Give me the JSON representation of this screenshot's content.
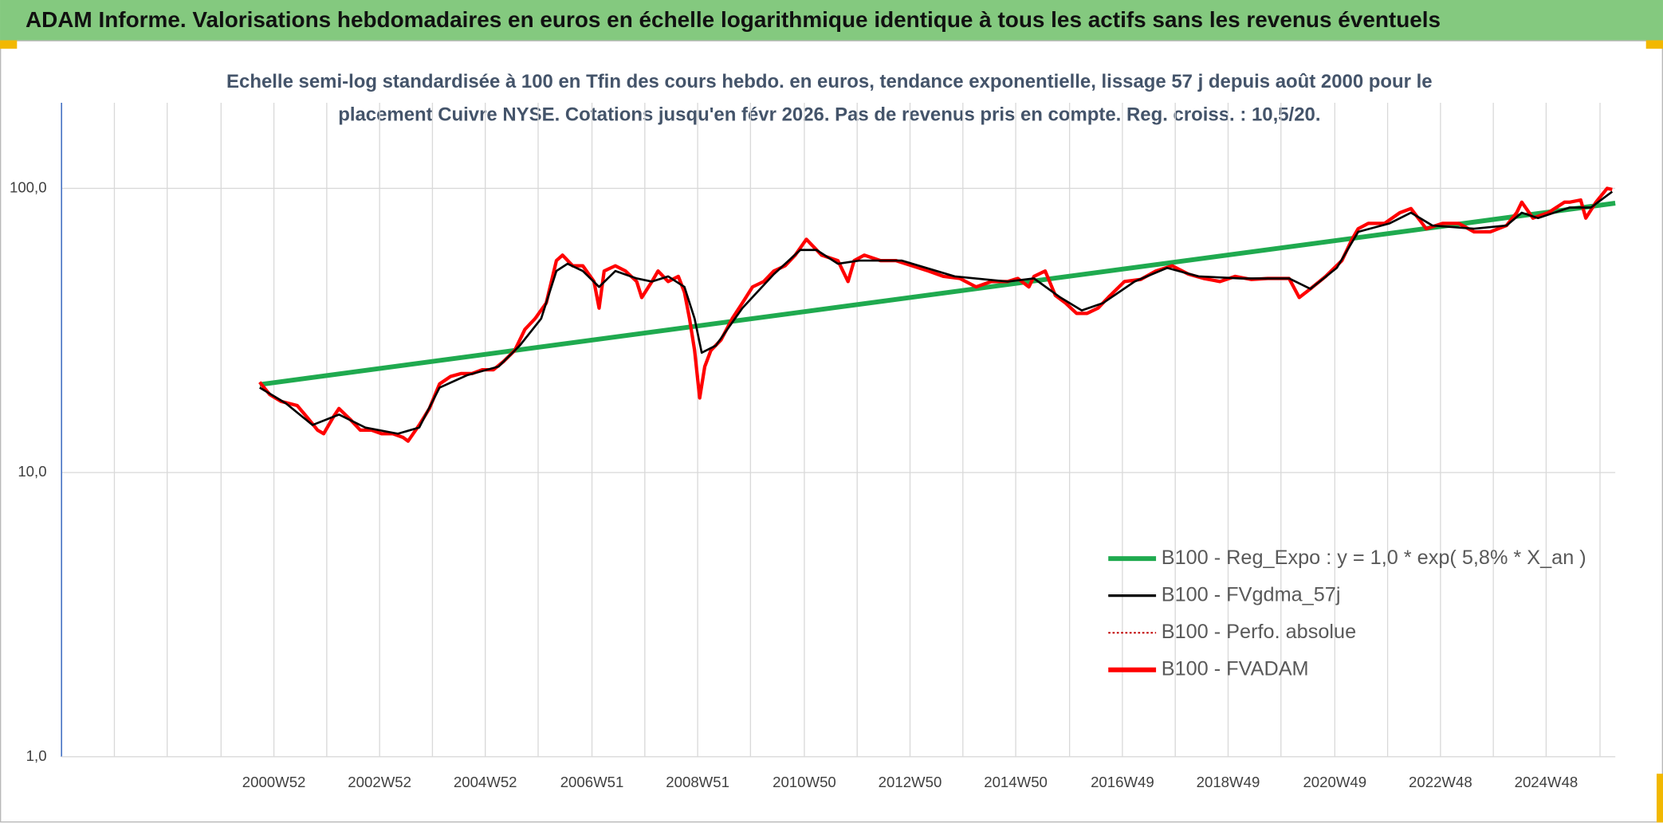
{
  "chart_data": {
    "type": "line",
    "title": "ADAM Informe. Valorisations hebdomadaires en euros en échelle logarithmique identique à tous les actifs sans les revenus éventuels",
    "subtitle": [
      "Echelle semi-log standardisée à 100 en Tfin des cours hebdo. en euros, tendance exponentielle, lissage 57 j depuis août 2000 pour le",
      "placement Cuivre NYSE. Cotations jusqu'en févr 2026. Pas de revenus pris en compte. Reg. croiss. : 10,5/20."
    ],
    "xlim": [
      -195,
      1334
    ],
    "xticks": [
      {
        "value": 14,
        "label": "2000W52"
      },
      {
        "value": 118,
        "label": "2002W52"
      },
      {
        "value": 222,
        "label": "2004W52"
      },
      {
        "value": 327,
        "label": "2006W51"
      },
      {
        "value": 431,
        "label": "2008W51"
      },
      {
        "value": 536,
        "label": "2010W50"
      },
      {
        "value": 640,
        "label": "2012W50"
      },
      {
        "value": 744,
        "label": "2014W50"
      },
      {
        "value": 849,
        "label": "2016W49"
      },
      {
        "value": 953,
        "label": "2018W49"
      },
      {
        "value": 1058,
        "label": "2020W49"
      },
      {
        "value": 1162,
        "label": "2022W48"
      },
      {
        "value": 1266,
        "label": "2024W48"
      }
    ],
    "xgrid": [
      -195,
      -143,
      -91,
      -38,
      14,
      66,
      118,
      170,
      222,
      274,
      327,
      379,
      431,
      483,
      536,
      588,
      640,
      692,
      744,
      797,
      849,
      901,
      953,
      1005,
      1058,
      1110,
      1162,
      1214,
      1266,
      1319
    ],
    "ylim": [
      1,
      200
    ],
    "ylog": true,
    "yticks": [
      {
        "value": 1,
        "label": "1,0"
      },
      {
        "value": 10,
        "label": "10,0"
      },
      {
        "value": 100,
        "label": "100,0"
      }
    ],
    "grid": true,
    "legend": "lower right",
    "series": [
      {
        "name": "B100 - Reg_Expo : y = 1,0 * exp( 5,8% *  X_an )",
        "color": "#1faa4f",
        "style": "solid",
        "x": [
          0,
          1334
        ],
        "values": [
          20.4,
          88.7
        ]
      },
      {
        "name": "B100 - FVgdma_57j",
        "color": "#000000",
        "style": "solid",
        "x": [
          0,
          26,
          52,
          78,
          104,
          136,
          157,
          177,
          204,
          235,
          256,
          277,
          292,
          303,
          318,
          334,
          350,
          371,
          386,
          402,
          418,
          428,
          435,
          449,
          475,
          506,
          532,
          548,
          569,
          590,
          632,
          684,
          736,
          762,
          788,
          809,
          830,
          861,
          893,
          924,
          966,
          1013,
          1034,
          1060,
          1081,
          1112,
          1133,
          1154,
          1195,
          1227,
          1242,
          1258,
          1289,
          1310,
          1331
        ],
        "values": [
          19.9,
          17.5,
          14.7,
          16.0,
          14.4,
          13.7,
          14.4,
          19.9,
          22.0,
          23.6,
          28.0,
          34.8,
          51.2,
          54.3,
          51.2,
          45.0,
          51.2,
          48.2,
          47.0,
          49.0,
          45.0,
          34.8,
          26.4,
          28.0,
          37.9,
          49.9,
          60.7,
          60.7,
          54.3,
          55.7,
          55.7,
          49.0,
          47.0,
          48.2,
          41.3,
          37.2,
          39.5,
          47.0,
          52.5,
          49.0,
          48.2,
          48.2,
          44.3,
          52.5,
          70.3,
          75.3,
          82.1,
          74.0,
          72.1,
          74.0,
          82.1,
          78.6,
          85.6,
          85.6,
          97.4
        ]
      },
      {
        "name": "B100 - Perfo. absolue",
        "color": "#c00000",
        "style": "dotted",
        "x": [
          0,
          10,
          21,
          37,
          47,
          57,
          63,
          73,
          78,
          89,
          99,
          110,
          120,
          131,
          141,
          146,
          157,
          167,
          177,
          188,
          198,
          209,
          219,
          230,
          240,
          251,
          261,
          271,
          282,
          292,
          298,
          308,
          318,
          329,
          334,
          339,
          350,
          360,
          371,
          376,
          386,
          392,
          402,
          412,
          418,
          423,
          428,
          433,
          438,
          444,
          454,
          465,
          475,
          485,
          496,
          506,
          517,
          527,
          538,
          543,
          553,
          569,
          579,
          585,
          595,
          611,
          626,
          642,
          658,
          673,
          689,
          705,
          720,
          736,
          746,
          757,
          762,
          773,
          783,
          793,
          804,
          814,
          825,
          835,
          851,
          867,
          882,
          898,
          914,
          929,
          945,
          960,
          976,
          992,
          1013,
          1023,
          1034,
          1049,
          1065,
          1075,
          1081,
          1091,
          1107,
          1122,
          1133,
          1148,
          1164,
          1180,
          1195,
          1211,
          1227,
          1237,
          1242,
          1253,
          1268,
          1284,
          1289,
          1300,
          1305,
          1315,
          1326,
          1331
        ],
        "values": [
          20.8,
          18.8,
          17.8,
          17.2,
          15.6,
          14.1,
          13.7,
          15.8,
          16.8,
          15.4,
          14.1,
          14.1,
          13.7,
          13.7,
          13.3,
          12.9,
          14.7,
          16.8,
          20.5,
          21.8,
          22.3,
          22.3,
          23.0,
          23.0,
          24.6,
          26.9,
          31.9,
          34.8,
          39.5,
          55.7,
          58.2,
          53.4,
          53.4,
          47.0,
          37.9,
          51.2,
          53.4,
          51.2,
          47.0,
          41.3,
          47.0,
          51.2,
          47.0,
          49.0,
          43.1,
          34.8,
          26.9,
          18.3,
          23.6,
          26.9,
          29.3,
          34.8,
          39.5,
          45.0,
          47.0,
          51.2,
          53.4,
          58.2,
          66.2,
          63.4,
          58.2,
          55.7,
          47.0,
          55.7,
          58.2,
          55.7,
          55.7,
          53.4,
          51.2,
          49.0,
          48.2,
          45.0,
          47.0,
          47.0,
          48.2,
          45.0,
          49.0,
          51.2,
          42.0,
          39.5,
          36.3,
          36.3,
          37.9,
          41.3,
          47.0,
          47.8,
          51.2,
          53.4,
          49.9,
          48.2,
          47.0,
          49.0,
          47.8,
          48.2,
          48.2,
          41.3,
          44.3,
          49.0,
          55.7,
          66.2,
          72.1,
          75.3,
          75.3,
          82.1,
          84.9,
          72.1,
          75.3,
          75.3,
          70.3,
          70.3,
          74.0,
          82.1,
          89.4,
          78.6,
          82.1,
          89.4,
          89.4,
          91.0,
          78.6,
          89.4,
          100,
          99.1
        ]
      },
      {
        "name": "B100 - FVADAM",
        "color": "#ff0000",
        "style": "solid",
        "x": [
          0,
          10,
          21,
          37,
          47,
          57,
          63,
          73,
          78,
          89,
          99,
          110,
          120,
          131,
          141,
          146,
          157,
          167,
          177,
          188,
          198,
          209,
          219,
          230,
          240,
          251,
          261,
          271,
          282,
          292,
          298,
          308,
          318,
          329,
          334,
          339,
          350,
          360,
          371,
          376,
          386,
          392,
          402,
          412,
          418,
          423,
          428,
          433,
          438,
          444,
          454,
          465,
          475,
          485,
          496,
          506,
          517,
          527,
          538,
          543,
          553,
          569,
          579,
          585,
          595,
          611,
          626,
          642,
          658,
          673,
          689,
          705,
          720,
          736,
          746,
          757,
          762,
          773,
          783,
          793,
          804,
          814,
          825,
          835,
          851,
          867,
          882,
          898,
          914,
          929,
          945,
          960,
          976,
          992,
          1013,
          1023,
          1034,
          1049,
          1065,
          1075,
          1081,
          1091,
          1107,
          1122,
          1133,
          1148,
          1164,
          1180,
          1195,
          1211,
          1227,
          1237,
          1242,
          1253,
          1268,
          1284,
          1289,
          1300,
          1305,
          1315,
          1326,
          1331
        ],
        "values": [
          20.8,
          18.8,
          17.8,
          17.2,
          15.6,
          14.1,
          13.7,
          15.8,
          16.8,
          15.4,
          14.1,
          14.1,
          13.7,
          13.7,
          13.3,
          12.9,
          14.7,
          16.8,
          20.5,
          21.8,
          22.3,
          22.3,
          23.0,
          23.0,
          24.6,
          26.9,
          31.9,
          34.8,
          39.5,
          55.7,
          58.2,
          53.4,
          53.4,
          47.0,
          37.9,
          51.2,
          53.4,
          51.2,
          47.0,
          41.3,
          47.0,
          51.2,
          47.0,
          49.0,
          43.1,
          34.8,
          26.9,
          18.3,
          23.6,
          26.9,
          29.3,
          34.8,
          39.5,
          45.0,
          47.0,
          51.2,
          53.4,
          58.2,
          66.2,
          63.4,
          58.2,
          55.7,
          47.0,
          55.7,
          58.2,
          55.7,
          55.7,
          53.4,
          51.2,
          49.0,
          48.2,
          45.0,
          47.0,
          47.0,
          48.2,
          45.0,
          49.0,
          51.2,
          42.0,
          39.5,
          36.3,
          36.3,
          37.9,
          41.3,
          47.0,
          47.8,
          51.2,
          53.4,
          49.9,
          48.2,
          47.0,
          49.0,
          47.8,
          48.2,
          48.2,
          41.3,
          44.3,
          49.0,
          55.7,
          66.2,
          72.1,
          75.3,
          75.3,
          82.1,
          84.9,
          72.1,
          75.3,
          75.3,
          70.3,
          70.3,
          74.0,
          82.1,
          89.4,
          78.6,
          82.1,
          89.4,
          89.4,
          91.0,
          78.6,
          89.4,
          100,
          99.1
        ]
      }
    ]
  }
}
